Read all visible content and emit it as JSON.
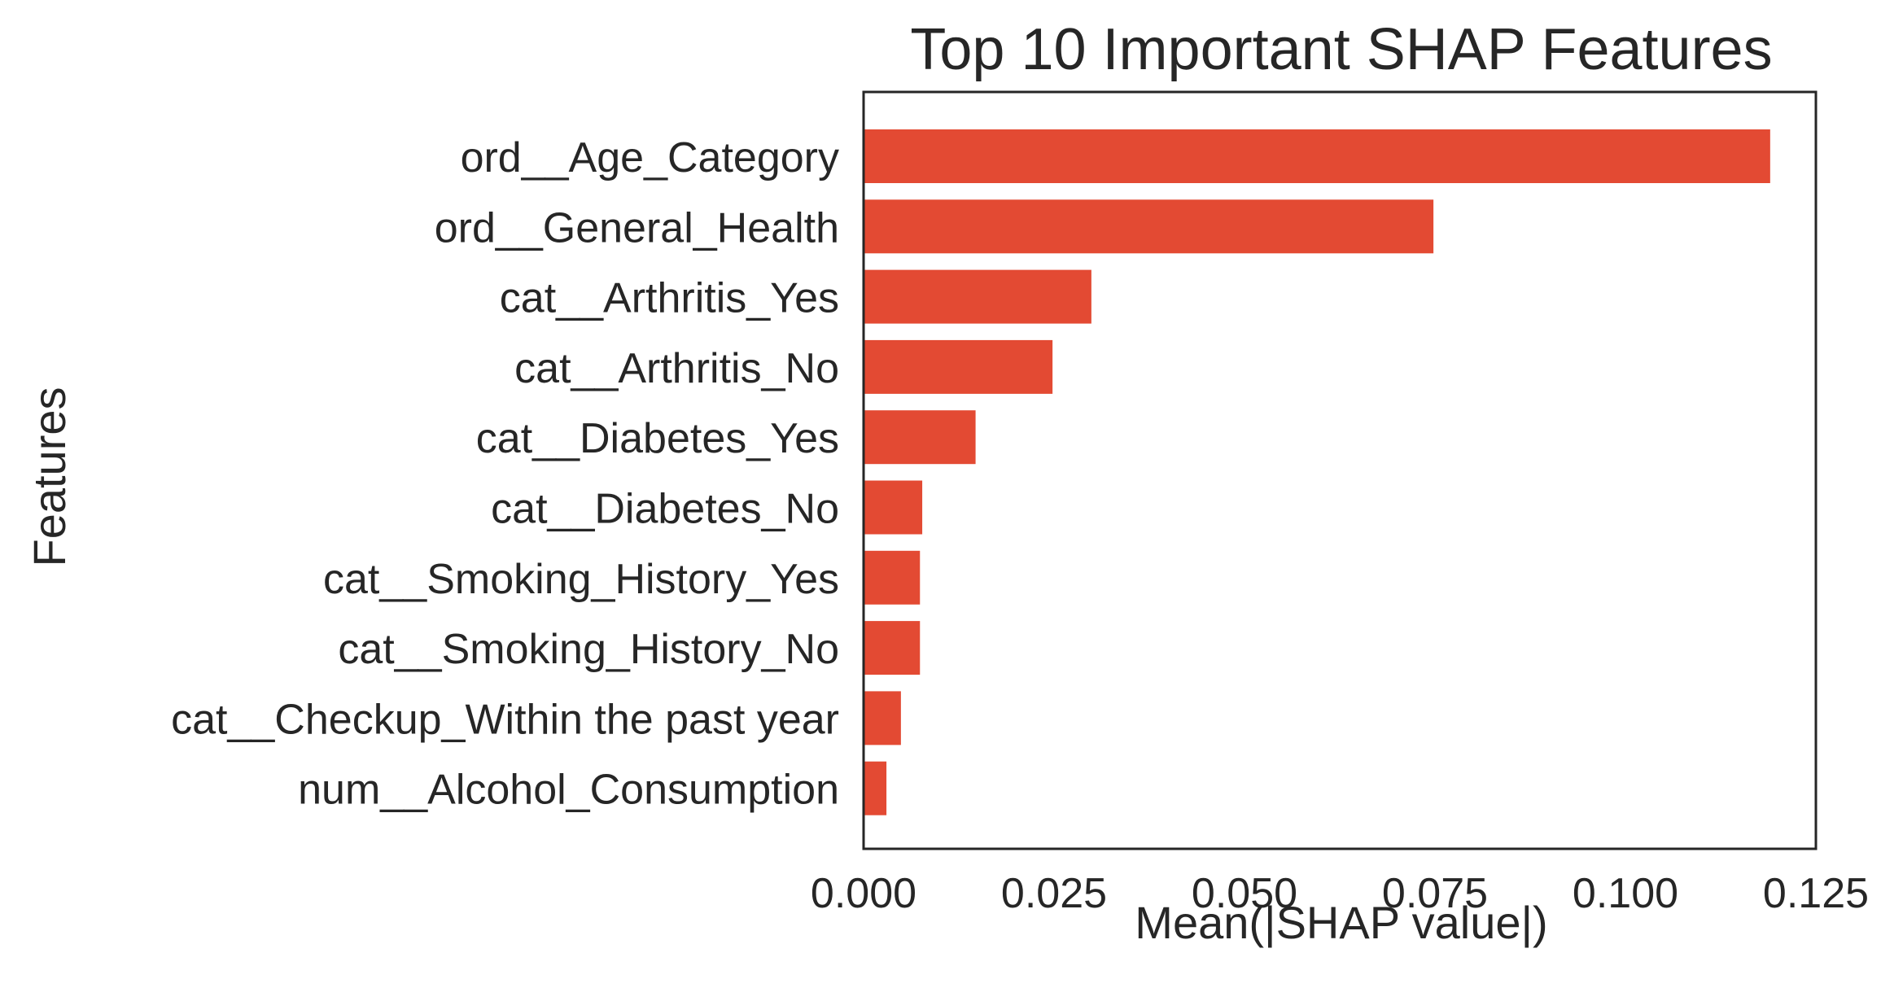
{
  "chart_data": {
    "type": "bar",
    "orientation": "horizontal",
    "title": "Top 10 Important SHAP Features",
    "xlabel": "Mean(|SHAP value|)",
    "ylabel": "Features",
    "xlim": [
      0,
      0.125
    ],
    "xticks": [
      0,
      0.025,
      0.05,
      0.075,
      0.1,
      0.125
    ],
    "xtick_labels": [
      "0.000",
      "0.025",
      "0.050",
      "0.075",
      "0.100",
      "0.125"
    ],
    "grid": false,
    "legend": "none",
    "bar_color": "#e34a33",
    "categories": [
      "ord__Age_Category",
      "ord__General_Health",
      "cat__Arthritis_Yes",
      "cat__Arthritis_No",
      "cat__Diabetes_Yes",
      "cat__Diabetes_No",
      "cat__Smoking_History_Yes",
      "cat__Smoking_History_No",
      "cat__Checkup_Within the past year",
      "num__Alcohol_Consumption"
    ],
    "values": [
      0.119,
      0.0748,
      0.0299,
      0.0248,
      0.0147,
      0.0077,
      0.0074,
      0.0074,
      0.0049,
      0.003
    ]
  }
}
